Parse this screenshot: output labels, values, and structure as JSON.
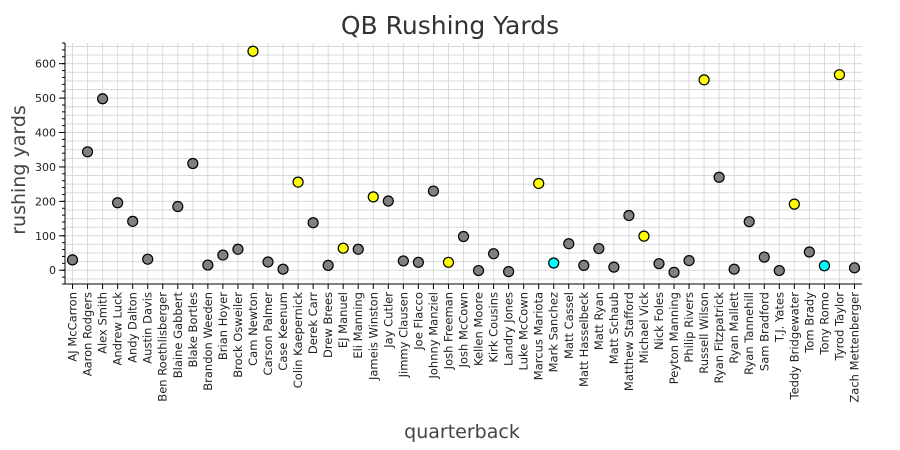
{
  "chart_data": {
    "type": "scatter",
    "title": "QB Rushing Yards",
    "xlabel": "quarterback",
    "ylabel": "rushing yards",
    "ylim": [
      -40,
      660
    ],
    "yticks": [
      0,
      100,
      200,
      300,
      400,
      500,
      600
    ],
    "grid": true,
    "colors": {
      "default": "#808080",
      "highlight_yellow": "#ffff00",
      "highlight_cyan": "#00ffff"
    },
    "categories": [
      "AJ McCarron",
      "Aaron Rodgers",
      "Alex Smith",
      "Andrew Luck",
      "Andy Dalton",
      "Austin Davis",
      "Ben Roethlisberger",
      "Blaine Gabbert",
      "Blake Bortles",
      "Brandon Weeden",
      "Brian Hoyer",
      "Brock Osweiler",
      "Cam Newton",
      "Carson Palmer",
      "Case Keenum",
      "Colin Kaepernick",
      "Derek Carr",
      "Drew Brees",
      "EJ Manuel",
      "Eli Manning",
      "Jameis Winston",
      "Jay Cutler",
      "Jimmy Clausen",
      "Joe Flacco",
      "Johnny Manziel",
      "Josh Freeman",
      "Josh McCown",
      "Kellen Moore",
      "Kirk Cousins",
      "Landry Jones",
      "Luke McCown",
      "Marcus Mariota",
      "Mark Sanchez",
      "Matt Cassel",
      "Matt Hasselbeck",
      "Matt Ryan",
      "Matt Schaub",
      "Matthew Stafford",
      "Michael Vick",
      "Nick Foles",
      "Peyton Manning",
      "Philip Rivers",
      "Russell Wilson",
      "Ryan Fitzpatrick",
      "Ryan Mallett",
      "Ryan Tannehill",
      "Sam Bradford",
      "T.J. Yates",
      "Teddy Bridgewater",
      "Tom Brady",
      "Tony Romo",
      "Tyrod Taylor",
      "Zach Mettenberger"
    ],
    "points": [
      {
        "x": "AJ McCarron",
        "y": 30,
        "color": "#808080"
      },
      {
        "x": "Aaron Rodgers",
        "y": 344,
        "color": "#808080"
      },
      {
        "x": "Alex Smith",
        "y": 498,
        "color": "#808080"
      },
      {
        "x": "Andrew Luck",
        "y": 196,
        "color": "#808080"
      },
      {
        "x": "Andy Dalton",
        "y": 142,
        "color": "#808080"
      },
      {
        "x": "Austin Davis",
        "y": 32,
        "color": "#808080"
      },
      {
        "x": "Blaine Gabbert",
        "y": 185,
        "color": "#808080"
      },
      {
        "x": "Blake Bortles",
        "y": 310,
        "color": "#808080"
      },
      {
        "x": "Brandon Weeden",
        "y": 15,
        "color": "#808080"
      },
      {
        "x": "Brian Hoyer",
        "y": 44,
        "color": "#808080"
      },
      {
        "x": "Brock Osweiler",
        "y": 61,
        "color": "#808080"
      },
      {
        "x": "Cam Newton",
        "y": 636,
        "color": "#ffff00"
      },
      {
        "x": "Carson Palmer",
        "y": 24,
        "color": "#808080"
      },
      {
        "x": "Case Keenum",
        "y": 3,
        "color": "#808080"
      },
      {
        "x": "Colin Kaepernick",
        "y": 256,
        "color": "#ffff00"
      },
      {
        "x": "Derek Carr",
        "y": 138,
        "color": "#808080"
      },
      {
        "x": "Drew Brees",
        "y": 14,
        "color": "#808080"
      },
      {
        "x": "EJ Manuel",
        "y": 64,
        "color": "#ffff00"
      },
      {
        "x": "Eli Manning",
        "y": 61,
        "color": "#808080"
      },
      {
        "x": "Jameis Winston",
        "y": 213,
        "color": "#ffff00"
      },
      {
        "x": "Jay Cutler",
        "y": 201,
        "color": "#808080"
      },
      {
        "x": "Jimmy Clausen",
        "y": 27,
        "color": "#808080"
      },
      {
        "x": "Joe Flacco",
        "y": 23,
        "color": "#808080"
      },
      {
        "x": "Johnny Manziel",
        "y": 230,
        "color": "#808080"
      },
      {
        "x": "Josh Freeman",
        "y": 23,
        "color": "#ffff00"
      },
      {
        "x": "Josh McCown",
        "y": 98,
        "color": "#808080"
      },
      {
        "x": "Kellen Moore",
        "y": -1,
        "color": "#808080"
      },
      {
        "x": "Kirk Cousins",
        "y": 48,
        "color": "#808080"
      },
      {
        "x": "Landry Jones",
        "y": -4,
        "color": "#808080"
      },
      {
        "x": "Marcus Mariota",
        "y": 252,
        "color": "#ffff00"
      },
      {
        "x": "Mark Sanchez",
        "y": 21,
        "color": "#00ffff"
      },
      {
        "x": "Matt Cassel",
        "y": 77,
        "color": "#808080"
      },
      {
        "x": "Matt Hasselbeck",
        "y": 14,
        "color": "#808080"
      },
      {
        "x": "Matt Ryan",
        "y": 63,
        "color": "#808080"
      },
      {
        "x": "Matt Schaub",
        "y": 9,
        "color": "#808080"
      },
      {
        "x": "Matthew Stafford",
        "y": 159,
        "color": "#808080"
      },
      {
        "x": "Michael Vick",
        "y": 99,
        "color": "#ffff00"
      },
      {
        "x": "Nick Foles",
        "y": 19,
        "color": "#808080"
      },
      {
        "x": "Peyton Manning",
        "y": -6,
        "color": "#808080"
      },
      {
        "x": "Philip Rivers",
        "y": 28,
        "color": "#808080"
      },
      {
        "x": "Russell Wilson",
        "y": 553,
        "color": "#ffff00"
      },
      {
        "x": "Ryan Fitzpatrick",
        "y": 270,
        "color": "#808080"
      },
      {
        "x": "Ryan Mallett",
        "y": 3,
        "color": "#808080"
      },
      {
        "x": "Ryan Tannehill",
        "y": 141,
        "color": "#808080"
      },
      {
        "x": "Sam Bradford",
        "y": 38,
        "color": "#808080"
      },
      {
        "x": "T.J. Yates",
        "y": -1,
        "color": "#808080"
      },
      {
        "x": "Teddy Bridgewater",
        "y": 192,
        "color": "#ffff00"
      },
      {
        "x": "Tom Brady",
        "y": 53,
        "color": "#808080"
      },
      {
        "x": "Tony Romo",
        "y": 13,
        "color": "#00ffff"
      },
      {
        "x": "Tyrod Taylor",
        "y": 568,
        "color": "#ffff00"
      },
      {
        "x": "Zach Mettenberger",
        "y": 7,
        "color": "#808080"
      }
    ]
  }
}
